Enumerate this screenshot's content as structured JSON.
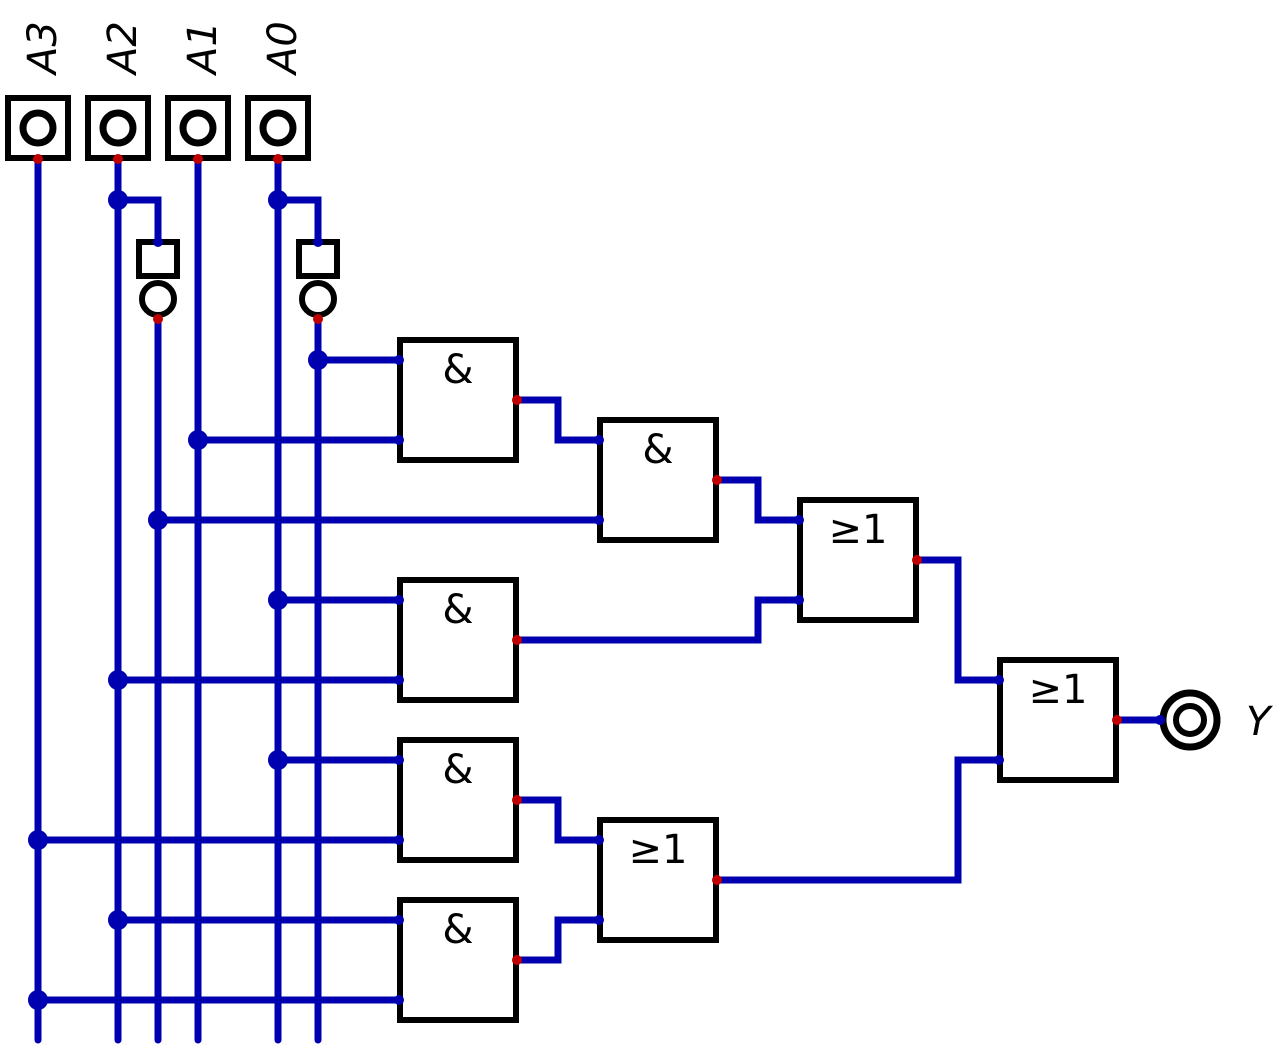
{
  "inputs": [
    {
      "label": "A3"
    },
    {
      "label": "A2"
    },
    {
      "label": "A1"
    },
    {
      "label": "A0"
    }
  ],
  "output": {
    "label": "Y"
  },
  "gates": {
    "and1": "&",
    "and2": "&",
    "and3": "&",
    "and4": "&",
    "and5": "&",
    "or1": "≥1",
    "or2": "≥1",
    "or3": "≥1"
  },
  "colors": {
    "wire": "#0000b0",
    "output_pin": "#c00000",
    "outline": "#000000"
  }
}
